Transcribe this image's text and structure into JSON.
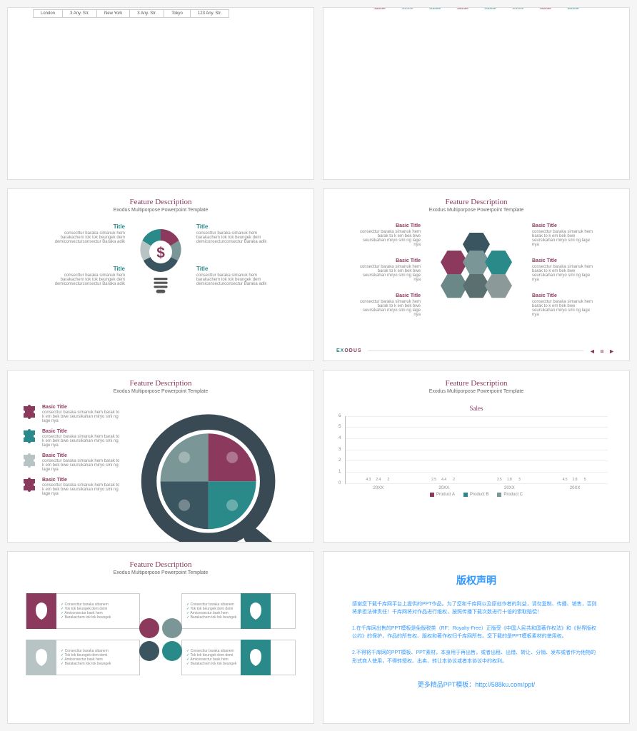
{
  "common": {
    "feature_title": "Feature Description",
    "subtitle": "Exodus Multiporpose Powerpoint Template",
    "brand_a": "EX",
    "brand_b": "ODUS",
    "nav_arrows": "◄ ≡ ►"
  },
  "s1": {
    "rows": [
      [
        "London",
        "3 Any. Str.",
        "New York",
        "3 Any. Str.",
        "Tokyo",
        "123 Any. Str."
      ]
    ]
  },
  "s2": {
    "items": [
      {
        "label": "Subtitle",
        "color": "#8b3a5e"
      },
      {
        "label": "Subtitle",
        "color": "#5a9696"
      },
      {
        "label": "Subtitle",
        "color": "#2a8a8a"
      },
      {
        "label": "Subtitle",
        "color": "#8b3a5e"
      },
      {
        "label": "Subtitle",
        "color": "#2a8a8a"
      },
      {
        "label": "Subtitle",
        "color": "#5a9696"
      },
      {
        "label": "Subtitle",
        "color": "#8b3a5e"
      },
      {
        "label": "Subtitle",
        "color": "#2a8a8a"
      }
    ]
  },
  "s3": {
    "title_label": "Title",
    "body": "consecttur baraka simanuk hem barakachem tok tok beungek dem demiconsecturconsectur Baraka adik",
    "bulb_colors": [
      "#8b3a5e",
      "#7a9696",
      "#2a8a8a",
      "#b8c4c4",
      "#3a5560"
    ],
    "dollar_color": "#8b3a5e",
    "base_color": "#555"
  },
  "s4": {
    "basic_title": "Basic Title",
    "body": "consecttur baraka simanuk hem barak to k em bek bwe seursikahan miryo smi ng lage nya",
    "hex_colors": [
      "#3a5560",
      "#8b3a5e",
      "#7a9696",
      "#2a8a8a",
      "#6b8888",
      "#5a7070",
      "#8b9999"
    ]
  },
  "s5": {
    "basic_title": "Basic Title",
    "body": "consecttur baraka simanuk hem barak to k em bek bwe seursikahan miryo smi ng lage nya",
    "puzzle_colors": [
      "#8b3a5e",
      "#2a8a8a",
      "#b8c4c4",
      "#8b3a5e"
    ],
    "mag_frame": "#3a4a55",
    "mag_pieces": [
      "#8b3a5e",
      "#2a8a8a",
      "#3a5560",
      "#7a9696"
    ]
  },
  "s6": {
    "chart_title": "Sales",
    "ymax": 6,
    "ytick": 1,
    "categories": [
      "20XX",
      "20XX",
      "20XX",
      "20XX"
    ],
    "series": [
      {
        "name": "Product A",
        "color": "#8b3a5e",
        "values": [
          4.3,
          2.5,
          3.5,
          4.5
        ]
      },
      {
        "name": "Product B",
        "color": "#2a8a8a",
        "values": [
          2.4,
          4.4,
          1.8,
          2.8
        ]
      },
      {
        "name": "Product C",
        "color": "#7a9696",
        "values": [
          2.0,
          2.0,
          3.0,
          5.0
        ]
      }
    ],
    "grid_color": "#eee",
    "axis_color": "#bbb"
  },
  "s7": {
    "lines": [
      "Consecttur baraka sibanem",
      "Tok tok beungek dem demi",
      "Amiconsectur bask hem",
      "Barakachem tok tok beungek"
    ],
    "circle_colors": [
      "#8b3a5e",
      "#7a9696",
      "#3a5560",
      "#2a8a8a"
    ],
    "face_colors": [
      "#8b3a5e",
      "#2a8a8a",
      "#b8c4c4",
      "#2a8a8a"
    ]
  },
  "s8": {
    "title": "版权声明",
    "p1": "感谢您下载千库网平台上提供的PPT作品。为了您和千库网以及原创作者的利益，请勿复制、传播、销售，否则将承担法律责任！千库网将对作品进行维权，按照传播下载次数进行十倍的索取赔偿！",
    "p2": "1.在千库网出售的PPT模板是免版税类（RF：Royalty-Free）正版受《中国人民共和国著作权法》和《世界版权公约》的保护，作品的所有权、版权和著作权归千库网所有。您下载的是PPT模板素材的使用权。",
    "p3": "2.不得将千库网的PPT模板、PPT素材，本身用于再出售，或者出租、出借、转让、分销、发布或者作为他物的形式商人使用，不得转授权、出卖、转让本协议或者本协议中的权利。",
    "more": "更多精品PPT模板：http://588ku.com/ppt/"
  }
}
